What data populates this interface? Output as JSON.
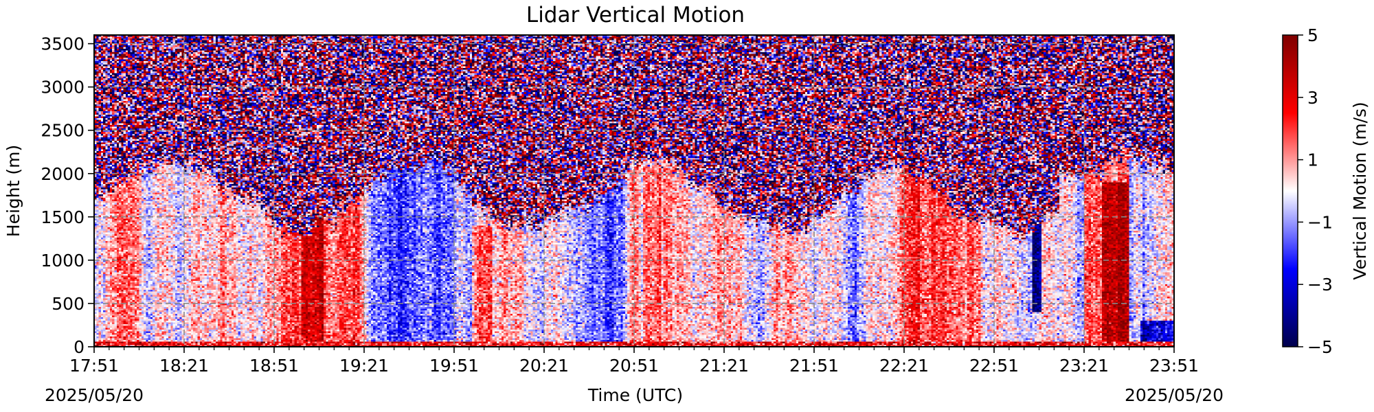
{
  "chart_data": {
    "type": "heatmap",
    "title": "Lidar Vertical Motion",
    "xlabel": "Time (UTC)",
    "ylabel": "Height (m)",
    "x_ticks": [
      "17:51",
      "18:21",
      "18:51",
      "19:21",
      "19:51",
      "20:21",
      "20:51",
      "21:21",
      "21:51",
      "22:21",
      "22:51",
      "23:21",
      "23:51"
    ],
    "x_range": [
      "17:51",
      "23:51"
    ],
    "x_date_left": "2025/05/20",
    "x_date_right": "2025/05/20",
    "y_ticks": [
      0,
      500,
      1000,
      1500,
      2000,
      2500,
      3000,
      3500
    ],
    "ylim": [
      0,
      3600
    ],
    "grid": true,
    "grid_style": "dashed",
    "colorbar": {
      "label": "Vertical Motion (m/s)",
      "ticks": [
        "5",
        "3",
        "1",
        "−1",
        "−3",
        "−5"
      ],
      "range": [
        -5,
        5
      ],
      "colormap": "seismic",
      "colors": [
        "#00004c",
        "#0000ff",
        "#ffffff",
        "#ff0000",
        "#7f0000"
      ]
    },
    "summary": {
      "noise_above_height_m": 2500,
      "boundary_layer_top_m": [
        1300,
        2000
      ],
      "strong_updraft_time": "23:30–23:42",
      "strong_updraft_max_m_s": 5
    }
  }
}
